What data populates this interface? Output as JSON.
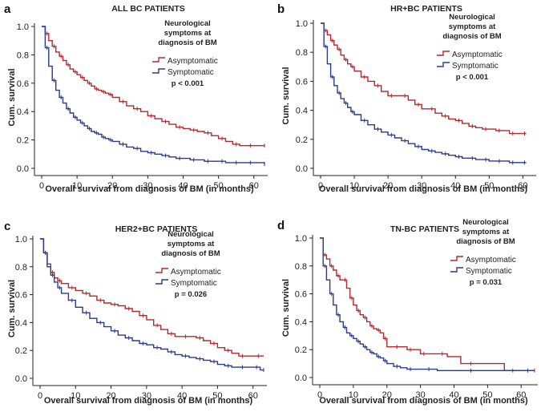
{
  "chart_data": [
    {
      "type": "line",
      "panel_label": "a",
      "title": "ALL BC PATIENTS",
      "xlabel": "Overall survival from diagnosis of BM (in months)",
      "ylabel": "Cum. survival",
      "xlim": [
        0,
        63
      ],
      "ylim": [
        0,
        1
      ],
      "x_ticks": [
        "0",
        "10",
        "20",
        "30",
        "40",
        "50",
        "60"
      ],
      "y_ticks": [
        "0.0",
        "0.2",
        "0.4",
        "0.6",
        "0.8",
        "1.0"
      ],
      "legend_title": [
        "Neurological",
        "symptoms at",
        "diagnosis of BM"
      ],
      "p_value": "p < 0.001",
      "series": [
        {
          "name": "Asymptomatic",
          "color": "#b8272c",
          "x": [
            0,
            1,
            2,
            3,
            4,
            5,
            6,
            7,
            8,
            9,
            10,
            11,
            12,
            13,
            14,
            15,
            16,
            17,
            18,
            19,
            20,
            22,
            24,
            26,
            28,
            30,
            32,
            34,
            36,
            38,
            40,
            42,
            44,
            46,
            48,
            50,
            52,
            54,
            56,
            58,
            60,
            63
          ],
          "y": [
            1.0,
            0.95,
            0.9,
            0.86,
            0.82,
            0.79,
            0.76,
            0.73,
            0.7,
            0.68,
            0.66,
            0.64,
            0.62,
            0.6,
            0.58,
            0.56,
            0.55,
            0.54,
            0.53,
            0.52,
            0.5,
            0.47,
            0.44,
            0.42,
            0.4,
            0.37,
            0.35,
            0.33,
            0.31,
            0.29,
            0.28,
            0.27,
            0.26,
            0.25,
            0.23,
            0.21,
            0.19,
            0.17,
            0.16,
            0.16,
            0.16,
            0.16
          ]
        },
        {
          "name": "Symptomatic",
          "color": "#2a3a8c",
          "x": [
            0,
            1,
            2,
            3,
            4,
            5,
            6,
            7,
            8,
            9,
            10,
            11,
            12,
            13,
            14,
            15,
            16,
            17,
            18,
            19,
            20,
            22,
            24,
            26,
            28,
            30,
            32,
            34,
            36,
            38,
            40,
            42,
            44,
            46,
            48,
            50,
            52,
            54,
            56,
            58,
            60,
            63
          ],
          "y": [
            1.0,
            0.85,
            0.72,
            0.62,
            0.55,
            0.5,
            0.46,
            0.42,
            0.39,
            0.36,
            0.34,
            0.32,
            0.3,
            0.28,
            0.26,
            0.25,
            0.24,
            0.22,
            0.21,
            0.2,
            0.19,
            0.17,
            0.15,
            0.14,
            0.12,
            0.11,
            0.1,
            0.09,
            0.08,
            0.07,
            0.07,
            0.06,
            0.06,
            0.05,
            0.05,
            0.05,
            0.04,
            0.04,
            0.04,
            0.04,
            0.04,
            0.03
          ]
        }
      ]
    },
    {
      "type": "line",
      "panel_label": "b",
      "title": "HR+BC PATIENTS",
      "xlabel": "Overall survival from diagnosis of BM (in months)",
      "ylabel": "Cum. survival",
      "xlim": [
        0,
        63
      ],
      "ylim": [
        0,
        1
      ],
      "x_ticks": [
        "0",
        "10",
        "20",
        "30",
        "40",
        "50",
        "60"
      ],
      "y_ticks": [
        "0.0",
        "0.2",
        "0.4",
        "0.6",
        "0.8",
        "1.0"
      ],
      "legend_title": [
        "Neurological",
        "symptoms at",
        "diagnosis of BM"
      ],
      "p_value": "p < 0.001",
      "series": [
        {
          "name": "Asymptomatic",
          "color": "#b8272c",
          "x": [
            0,
            1,
            2,
            3,
            4,
            5,
            6,
            7,
            8,
            9,
            10,
            12,
            14,
            16,
            18,
            20,
            22,
            24,
            26,
            28,
            30,
            32,
            34,
            36,
            38,
            40,
            42,
            44,
            46,
            48,
            50,
            52,
            54,
            56,
            58,
            60,
            61
          ],
          "y": [
            1.0,
            0.95,
            0.92,
            0.88,
            0.85,
            0.82,
            0.78,
            0.75,
            0.72,
            0.7,
            0.67,
            0.63,
            0.6,
            0.57,
            0.53,
            0.5,
            0.5,
            0.5,
            0.47,
            0.44,
            0.41,
            0.41,
            0.38,
            0.36,
            0.34,
            0.33,
            0.31,
            0.29,
            0.28,
            0.27,
            0.27,
            0.26,
            0.26,
            0.24,
            0.24,
            0.24,
            0.24
          ]
        },
        {
          "name": "Symptomatic",
          "color": "#2a3a8c",
          "x": [
            0,
            1,
            2,
            3,
            4,
            5,
            6,
            7,
            8,
            9,
            10,
            12,
            14,
            16,
            18,
            20,
            22,
            24,
            26,
            28,
            30,
            32,
            34,
            36,
            38,
            40,
            42,
            44,
            46,
            48,
            50,
            52,
            54,
            56,
            58,
            60,
            61
          ],
          "y": [
            1.0,
            0.84,
            0.72,
            0.63,
            0.57,
            0.52,
            0.48,
            0.45,
            0.42,
            0.39,
            0.37,
            0.33,
            0.3,
            0.27,
            0.25,
            0.23,
            0.21,
            0.19,
            0.17,
            0.15,
            0.13,
            0.12,
            0.11,
            0.1,
            0.09,
            0.08,
            0.07,
            0.07,
            0.06,
            0.06,
            0.05,
            0.05,
            0.05,
            0.04,
            0.04,
            0.04,
            0.04
          ]
        }
      ]
    },
    {
      "type": "line",
      "panel_label": "c",
      "title": "HER2+BC PATIENTS",
      "xlabel": "Overall survival from diagnosis of BM (in months)",
      "ylabel": "Cum. survival",
      "xlim": [
        0,
        63
      ],
      "ylim": [
        0,
        1
      ],
      "x_ticks": [
        "0",
        "10",
        "20",
        "30",
        "40",
        "50",
        "60"
      ],
      "y_ticks": [
        "0.0",
        "0.2",
        "0.4",
        "0.6",
        "0.8",
        "1.0"
      ],
      "legend_title": [
        "Neurological",
        "symptoms at",
        "diagnosis of BM"
      ],
      "p_value": "p = 0.026",
      "series": [
        {
          "name": "Asymptomatic",
          "color": "#b8272c",
          "x": [
            0,
            1,
            2,
            3,
            4,
            5,
            6,
            8,
            10,
            12,
            14,
            16,
            18,
            20,
            22,
            24,
            26,
            28,
            30,
            32,
            34,
            36,
            38,
            40,
            42,
            44,
            46,
            48,
            50,
            52,
            54,
            56,
            58,
            60,
            63
          ],
          "y": [
            1.0,
            0.9,
            0.82,
            0.76,
            0.72,
            0.7,
            0.68,
            0.65,
            0.63,
            0.61,
            0.59,
            0.56,
            0.54,
            0.53,
            0.52,
            0.5,
            0.48,
            0.45,
            0.42,
            0.38,
            0.35,
            0.32,
            0.3,
            0.3,
            0.3,
            0.29,
            0.27,
            0.25,
            0.22,
            0.2,
            0.18,
            0.16,
            0.16,
            0.16,
            0.16
          ]
        },
        {
          "name": "Symptomatic",
          "color": "#2a3a8c",
          "x": [
            0,
            1,
            2,
            3,
            4,
            5,
            6,
            8,
            10,
            12,
            14,
            16,
            18,
            20,
            22,
            24,
            26,
            28,
            30,
            32,
            34,
            36,
            38,
            40,
            42,
            44,
            46,
            48,
            50,
            52,
            54,
            56,
            58,
            60,
            62,
            63
          ],
          "y": [
            1.0,
            0.9,
            0.8,
            0.74,
            0.69,
            0.65,
            0.61,
            0.56,
            0.51,
            0.47,
            0.43,
            0.4,
            0.37,
            0.34,
            0.31,
            0.29,
            0.27,
            0.25,
            0.24,
            0.22,
            0.21,
            0.19,
            0.17,
            0.16,
            0.15,
            0.14,
            0.13,
            0.12,
            0.1,
            0.09,
            0.08,
            0.08,
            0.08,
            0.08,
            0.06,
            0.06
          ]
        }
      ]
    },
    {
      "type": "line",
      "panel_label": "d",
      "title": "TN-BC PATIENTS",
      "xlabel": "Overall survival from diagnosis of BM (in months)",
      "ylabel": "Cum. survival",
      "xlim": [
        0,
        64
      ],
      "ylim": [
        0,
        1
      ],
      "x_ticks": [
        "0",
        "10",
        "20",
        "30",
        "40",
        "50",
        "60"
      ],
      "y_ticks": [
        "0.0",
        "0.2",
        "0.4",
        "0.6",
        "0.8",
        "1.0"
      ],
      "legend_title": [
        "Neurological",
        "symptoms at",
        "diagnosis of BM"
      ],
      "p_value": "p = 0.031",
      "series": [
        {
          "name": "Asymptomatic",
          "color": "#b8272c",
          "x": [
            0,
            1,
            2,
            3,
            4,
            5,
            6,
            7,
            8,
            9,
            10,
            11,
            12,
            13,
            14,
            15,
            16,
            17,
            18,
            19,
            20,
            22,
            24,
            26,
            28,
            30,
            32,
            35,
            38,
            42,
            48,
            55,
            60,
            64
          ],
          "y": [
            1.0,
            0.88,
            0.85,
            0.8,
            0.77,
            0.73,
            0.7,
            0.7,
            0.64,
            0.57,
            0.52,
            0.48,
            0.45,
            0.43,
            0.4,
            0.37,
            0.35,
            0.34,
            0.32,
            0.28,
            0.22,
            0.22,
            0.22,
            0.2,
            0.2,
            0.17,
            0.17,
            0.17,
            0.15,
            0.1,
            0.1,
            0.05,
            0.05,
            0.05
          ]
        },
        {
          "name": "Symptomatic",
          "color": "#2a3a8c",
          "x": [
            0,
            1,
            2,
            3,
            4,
            5,
            6,
            7,
            8,
            9,
            10,
            11,
            12,
            13,
            14,
            15,
            16,
            17,
            18,
            19,
            20,
            22,
            24,
            26,
            28,
            30,
            35,
            40,
            50,
            60,
            64
          ],
          "y": [
            1.0,
            0.8,
            0.7,
            0.6,
            0.52,
            0.45,
            0.4,
            0.36,
            0.32,
            0.3,
            0.28,
            0.26,
            0.24,
            0.22,
            0.2,
            0.18,
            0.17,
            0.15,
            0.14,
            0.12,
            0.1,
            0.08,
            0.07,
            0.06,
            0.06,
            0.06,
            0.05,
            0.05,
            0.05,
            0.05,
            0.05
          ]
        }
      ]
    }
  ]
}
